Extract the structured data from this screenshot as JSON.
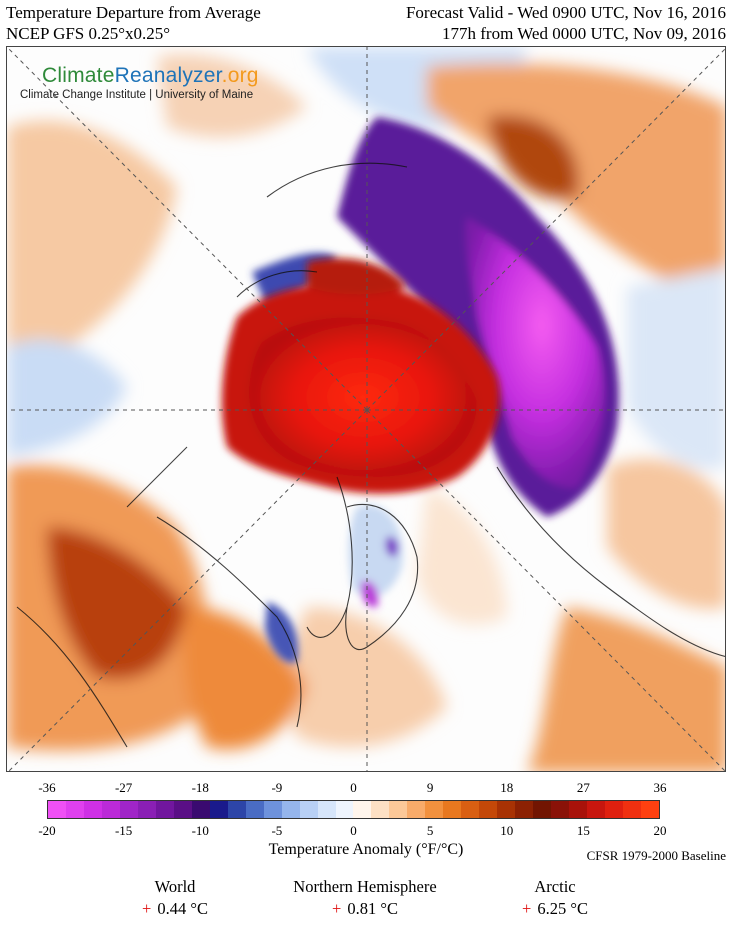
{
  "header": {
    "title": "Temperature Departure from Average",
    "model": "NCEP GFS 0.25°x0.25°",
    "valid": "Forecast Valid - Wed 0900 UTC, Nov 16, 2016",
    "lead": "177h from Wed 0000 UTC, Nov 09, 2016"
  },
  "logo": {
    "brand_part1": "Climate",
    "brand_part2": "Reanalyzer",
    "brand_part3": ".org",
    "subtitle": "Climate Change Institute | University of Maine"
  },
  "colorbar": {
    "fahrenheit_ticks": [
      "-36",
      "-27",
      "-18",
      "-9",
      "0",
      "9",
      "18",
      "27",
      "36"
    ],
    "celsius_ticks": [
      "-20",
      "-15",
      "-10",
      "-5",
      "0",
      "5",
      "10",
      "15",
      "20"
    ],
    "colors": [
      "#f050f5",
      "#e040ef",
      "#cf30e6",
      "#bb2ad8",
      "#a025c8",
      "#8a1fb5",
      "#71169e",
      "#5a0f86",
      "#3a0a70",
      "#1a1a8c",
      "#2d45a8",
      "#4a6cc4",
      "#6e92dc",
      "#95b5ec",
      "#b8d0f5",
      "#d6e5fa",
      "#eef4fd",
      "#fff5ec",
      "#fde0c4",
      "#fcc898",
      "#f8ab6a",
      "#f2913e",
      "#e8781f",
      "#d95f12",
      "#c44808",
      "#a83204",
      "#8c2103",
      "#721502",
      "#8a1208",
      "#a8120a",
      "#c8160e",
      "#e0200f",
      "#f03010",
      "#ff4010"
    ],
    "units_label": "Temperature Anomaly (°F/°C)",
    "baseline": "CFSR 1979-2000 Baseline"
  },
  "stats": [
    {
      "label": "World",
      "sign": "+",
      "value": "0.44 °C"
    },
    {
      "label": "Northern Hemisphere",
      "sign": "+",
      "value": "0.81 °C"
    },
    {
      "label": "Arctic",
      "sign": "+",
      "value": "6.25 °C"
    }
  ]
}
